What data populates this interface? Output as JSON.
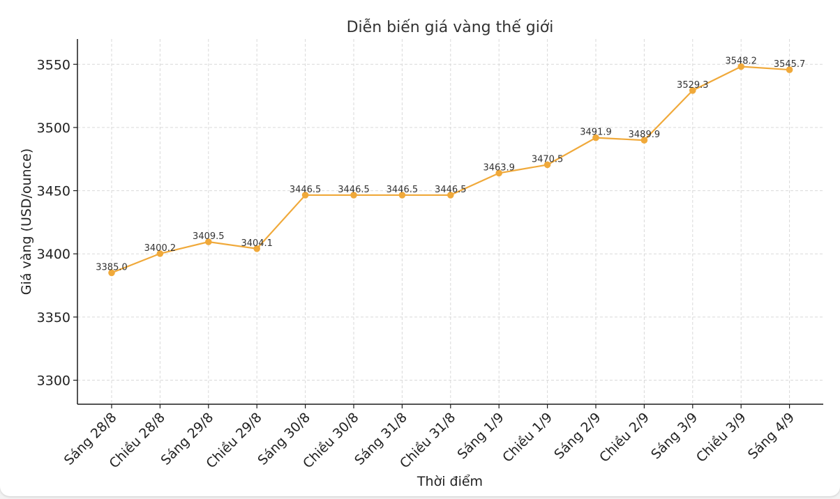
{
  "chart_data": {
    "type": "line",
    "title": "Diễn biến giá vàng thế giới",
    "xlabel": "Thời điểm",
    "ylabel": "Giá vàng (USD/ounce)",
    "categories": [
      "Sáng 28/8",
      "Chiều 28/8",
      "Sáng 29/8",
      "Chiều 29/8",
      "Sáng 30/8",
      "Chiều 30/8",
      "Sáng 31/8",
      "Chiều 31/8",
      "Sáng 1/9",
      "Chiều 1/9",
      "Sáng 2/9",
      "Chiều 2/9",
      "Sáng 3/9",
      "Chiều 3/9",
      "Sáng 4/9"
    ],
    "values": [
      3385.0,
      3400.2,
      3409.5,
      3404.1,
      3446.5,
      3446.5,
      3446.5,
      3446.5,
      3463.9,
      3470.5,
      3491.9,
      3489.9,
      3529.3,
      3548.2,
      3545.7
    ],
    "data_labels": [
      "3385.0",
      "3400.2",
      "3409.5",
      "3404.1",
      "3446.5",
      "3446.5",
      "3446.5",
      "3446.5",
      "3463.9",
      "3470.5",
      "3491.9",
      "3489.9",
      "3529.3",
      "3548.2",
      "3545.7"
    ],
    "yticks": [
      3300,
      3350,
      3400,
      3450,
      3500,
      3550
    ],
    "ylim": [
      3281,
      3570
    ],
    "grid": true,
    "color": "#f0a93a"
  }
}
